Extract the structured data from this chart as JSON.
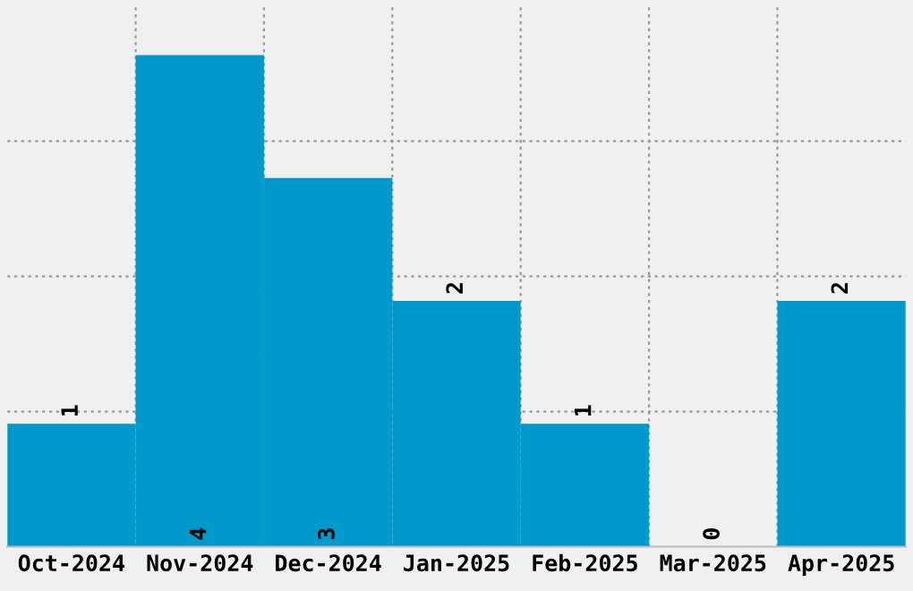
{
  "chart_data": {
    "type": "bar",
    "categories": [
      "Oct-2024",
      "Nov-2024",
      "Dec-2024",
      "Jan-2025",
      "Feb-2025",
      "Mar-2025",
      "Apr-2025"
    ],
    "values": [
      1,
      4,
      3,
      2,
      1,
      0,
      2
    ],
    "color": "#0099cc",
    "ylim": [
      0,
      4.4
    ],
    "yticks": [
      {
        "value": 1.1,
        "label": null
      },
      {
        "value": 2.2,
        "label": null
      },
      {
        "value": 3.3,
        "label": null
      }
    ],
    "tick_labels": "x",
    "grid": true,
    "data_labels": true
  }
}
